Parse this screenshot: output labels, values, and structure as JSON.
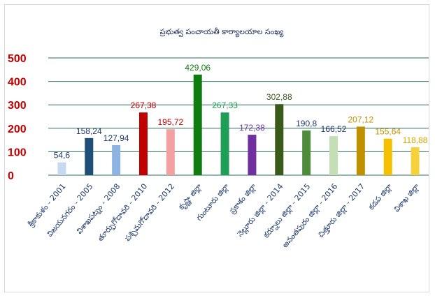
{
  "chart_data": {
    "type": "bar",
    "title": "ప్రభుత్వ పంచాయతీ కార్యాలయాల సంఖ్య",
    "xlabel": "",
    "ylabel": "",
    "ylim": [
      0,
      500
    ],
    "yticks": [
      0,
      100,
      200,
      300,
      400,
      500
    ],
    "grid": true,
    "legend": "none",
    "categories": [
      "శ్రీకాకుళం - 2001",
      "విజయనగరం - 2005",
      "విశాఖపట్నం - 2008",
      "తూర్పుగోదావరి - 2010",
      "పశ్చిమగోదావరి - 2012",
      "కృష్ణా జిల్లా",
      "గుంటూరు జిల్లా",
      "ప్రకాశం జిల్లా",
      "నెల్లూరు జిల్లా - 2014",
      "కర్నూలు జిల్లా - 2015",
      "అనంతపురం జిల్లా - 2016",
      "చిత్తూరు జిల్లా - 2017",
      "కడప జిల్లా",
      "విశాఖ జిల్లా"
    ],
    "values": [
      54.6,
      158.24,
      127.94,
      267.38,
      195.72,
      429.06,
      267.33,
      172.38,
      302.88,
      190.8,
      166.52,
      207.12,
      155.64,
      118.88
    ],
    "value_labels": [
      "54,6",
      "158,24",
      "127,94",
      "267,38",
      "195,72",
      "429,06",
      "267,33",
      "172,38",
      "302,88",
      "190,8",
      "166,52",
      "207,12",
      "155,64",
      "118,88"
    ],
    "colors": [
      "#c6d9f1",
      "#1f4e79",
      "#8db3e2",
      "#c00000",
      "#f2a0a0",
      "#107c10",
      "#1e9e57",
      "#7030a0",
      "#3a5a1c",
      "#4e8b3a",
      "#c4dfb4",
      "#c09000",
      "#f5c000",
      "#f5d23a"
    ],
    "label_colors": [
      "#1f3a6b",
      "#1f3a6b",
      "#1f3a6b",
      "#c00000",
      "#c00000",
      "#107c10",
      "#1e9e57",
      "#7030a0",
      "#3a5a1c",
      "#1f3a6b",
      "#1f3a6b",
      "#c09000",
      "#c09000",
      "#d4a800"
    ],
    "tick_color": "#c00000",
    "grid_color": "#2e6b5e"
  }
}
